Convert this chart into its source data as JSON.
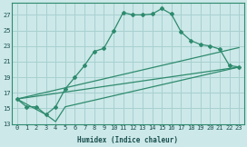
{
  "xlabel": "Humidex (Indice chaleur)",
  "line_color": "#2e8b6e",
  "bg_color": "#cce8e8",
  "grid_color": "#a8d0d0",
  "xlim": [
    -0.5,
    23.5
  ],
  "ylim": [
    13,
    28.5
  ],
  "yticks": [
    13,
    15,
    17,
    19,
    21,
    23,
    25,
    27
  ],
  "xticks": [
    0,
    1,
    2,
    3,
    4,
    5,
    6,
    7,
    8,
    9,
    10,
    11,
    12,
    13,
    14,
    15,
    16,
    17,
    18,
    19,
    20,
    21,
    22,
    23
  ],
  "line1_x": [
    0,
    1,
    2,
    3,
    4,
    5,
    6,
    7,
    8,
    9,
    10,
    11,
    12,
    13,
    14,
    15,
    16,
    17,
    18,
    19,
    20,
    21,
    22,
    23
  ],
  "line1_y": [
    16.2,
    15.2,
    15.2,
    14.2,
    15.2,
    17.5,
    19.0,
    20.5,
    22.3,
    22.7,
    24.9,
    27.3,
    27.0,
    27.0,
    27.1,
    27.8,
    27.1,
    24.8,
    23.7,
    23.2,
    23.0,
    22.6,
    20.5,
    20.3
  ],
  "line2_x": [
    0,
    23
  ],
  "line2_y": [
    16.2,
    20.3
  ],
  "line3_x": [
    0,
    23
  ],
  "line3_y": [
    16.2,
    22.8
  ],
  "line4_x": [
    0,
    3,
    4,
    5,
    23
  ],
  "line4_y": [
    16.2,
    14.2,
    13.3,
    15.2,
    20.3
  ]
}
